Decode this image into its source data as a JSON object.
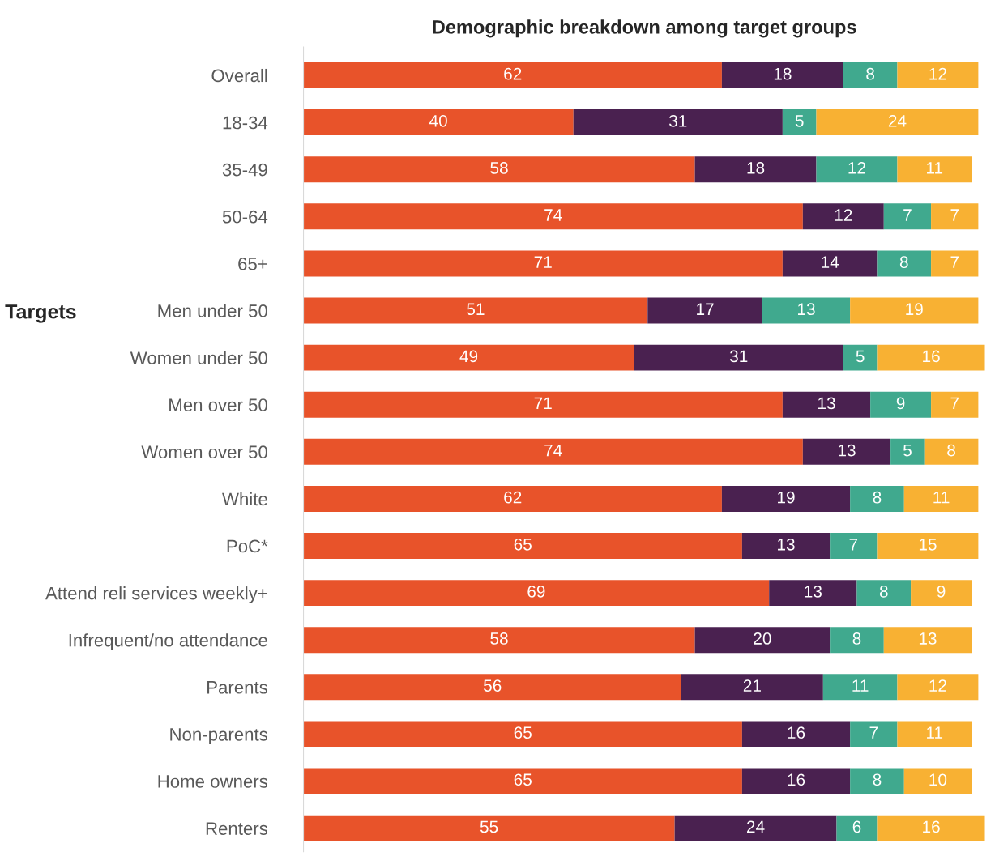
{
  "chart_data": {
    "type": "bar",
    "title": "Demographic breakdown among target groups",
    "orientation": "horizontal",
    "stacked": true,
    "data_labels": true,
    "tick_labels": "y",
    "xlim": [
      0,
      101
    ],
    "categories": [
      "Overall",
      "18-34",
      "35-49",
      "50-64",
      "65+",
      "Men under 50",
      "Women under 50",
      "Men over 50",
      "Women over 50",
      "White",
      "PoC*",
      "Attend reli services weekly+",
      "Infrequent/no attendance",
      "Parents",
      "Non-parents",
      "Home owners",
      "Renters"
    ],
    "series": [
      {
        "color": "#e8532a",
        "values": [
          62,
          40,
          58,
          74,
          71,
          51,
          49,
          71,
          74,
          62,
          65,
          69,
          58,
          56,
          65,
          65,
          55
        ]
      },
      {
        "color": "#4a2150",
        "values": [
          18,
          31,
          18,
          12,
          14,
          17,
          31,
          13,
          13,
          19,
          13,
          13,
          20,
          21,
          16,
          16,
          24
        ]
      },
      {
        "color": "#40a98e",
        "values": [
          8,
          5,
          12,
          7,
          8,
          13,
          5,
          9,
          5,
          8,
          7,
          8,
          8,
          11,
          7,
          8,
          6
        ]
      },
      {
        "color": "#f8b133",
        "values": [
          12,
          24,
          11,
          7,
          7,
          19,
          16,
          7,
          8,
          11,
          15,
          9,
          13,
          12,
          11,
          10,
          16
        ]
      }
    ],
    "annotations": [
      "Targets"
    ]
  }
}
